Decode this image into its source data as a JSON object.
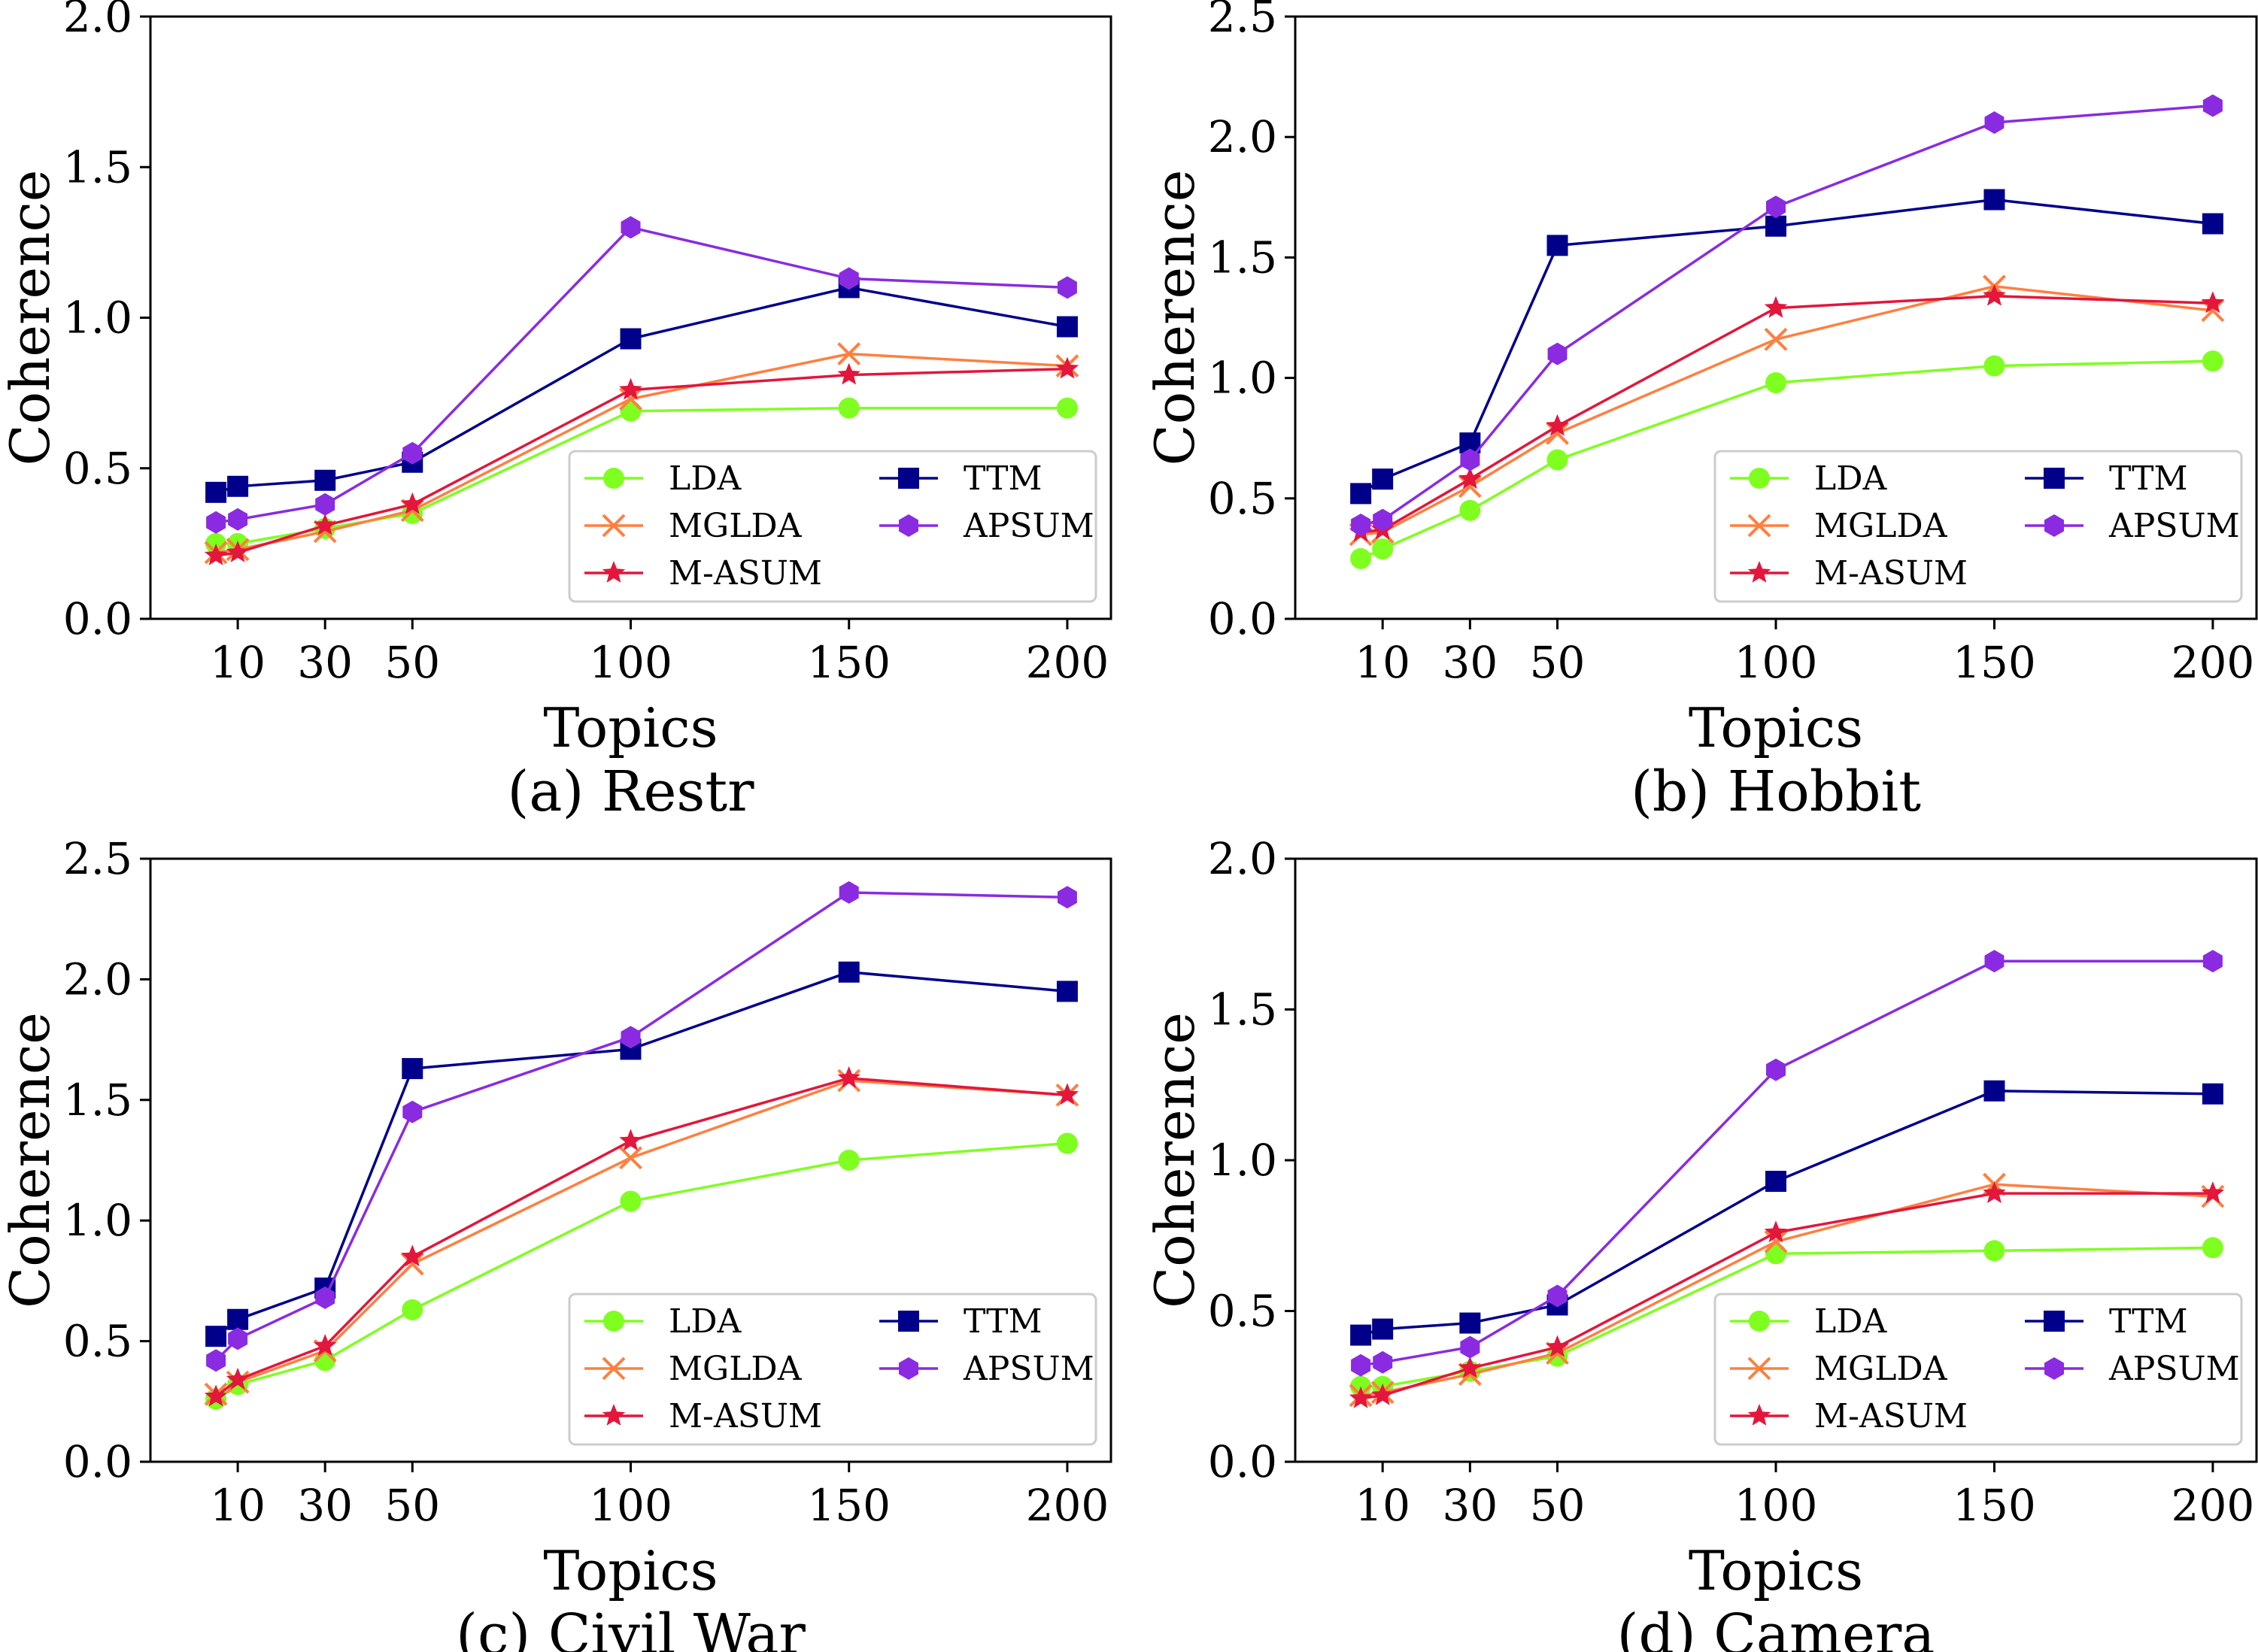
{
  "series_styles": [
    {
      "name": "LDA",
      "color": "#7fff1f",
      "marker": "circle"
    },
    {
      "name": "MGLDA",
      "color": "#ff7f3f",
      "marker": "x"
    },
    {
      "name": "M-ASUM",
      "color": "#e3163b",
      "marker": "star"
    },
    {
      "name": "TTM",
      "color": "#00008b",
      "marker": "square"
    },
    {
      "name": "APSUM",
      "color": "#8a2be2",
      "marker": "hexagon"
    }
  ],
  "chart_data": [
    {
      "type": "line",
      "caption": "(a) Restr",
      "xlabel": "Topics",
      "ylabel": "Coherence",
      "x": [
        5,
        10,
        30,
        50,
        100,
        150,
        200
      ],
      "xticks": [
        10,
        30,
        50,
        100,
        150,
        200
      ],
      "xlim": [
        -10,
        210
      ],
      "ylim": [
        0.0,
        2.0
      ],
      "yticks": [
        "0.0",
        "0.5",
        "1.0",
        "1.5",
        "2.0"
      ],
      "grid": false,
      "legend": "lower-right",
      "series": [
        {
          "name": "LDA",
          "values": [
            0.25,
            0.25,
            0.3,
            0.35,
            0.69,
            0.7,
            0.7
          ]
        },
        {
          "name": "MGLDA",
          "values": [
            0.22,
            0.23,
            0.29,
            0.36,
            0.73,
            0.88,
            0.84
          ]
        },
        {
          "name": "M-ASUM",
          "values": [
            0.21,
            0.22,
            0.31,
            0.38,
            0.76,
            0.81,
            0.83
          ]
        },
        {
          "name": "TTM",
          "values": [
            0.42,
            0.44,
            0.46,
            0.52,
            0.93,
            1.1,
            0.97
          ]
        },
        {
          "name": "APSUM",
          "values": [
            0.32,
            0.33,
            0.38,
            0.55,
            1.3,
            1.13,
            1.1
          ]
        }
      ]
    },
    {
      "type": "line",
      "caption": "(b) Hobbit",
      "xlabel": "Topics",
      "ylabel": "Coherence",
      "x": [
        5,
        10,
        30,
        50,
        100,
        150,
        200
      ],
      "xticks": [
        10,
        30,
        50,
        100,
        150,
        200
      ],
      "xlim": [
        -10,
        210
      ],
      "ylim": [
        0.0,
        2.5
      ],
      "yticks": [
        "0.0",
        "0.5",
        "1.0",
        "1.5",
        "2.0",
        "2.5"
      ],
      "grid": false,
      "legend": "lower-right",
      "series": [
        {
          "name": "LDA",
          "values": [
            0.25,
            0.29,
            0.45,
            0.66,
            0.98,
            1.05,
            1.07
          ]
        },
        {
          "name": "MGLDA",
          "values": [
            0.35,
            0.36,
            0.55,
            0.77,
            1.16,
            1.38,
            1.28
          ]
        },
        {
          "name": "M-ASUM",
          "values": [
            0.36,
            0.37,
            0.58,
            0.8,
            1.29,
            1.34,
            1.31
          ]
        },
        {
          "name": "TTM",
          "values": [
            0.52,
            0.58,
            0.73,
            1.55,
            1.63,
            1.74,
            1.64
          ]
        },
        {
          "name": "APSUM",
          "values": [
            0.39,
            0.41,
            0.66,
            1.1,
            1.71,
            2.06,
            2.13
          ]
        }
      ]
    },
    {
      "type": "line",
      "caption": "(c) Civil War",
      "xlabel": "Topics",
      "ylabel": "Coherence",
      "x": [
        5,
        10,
        30,
        50,
        100,
        150,
        200
      ],
      "xticks": [
        10,
        30,
        50,
        100,
        150,
        200
      ],
      "xlim": [
        -10,
        210
      ],
      "ylim": [
        0.0,
        2.5
      ],
      "yticks": [
        "0.0",
        "0.5",
        "1.0",
        "1.5",
        "2.0",
        "2.5"
      ],
      "grid": false,
      "legend": "lower-right",
      "series": [
        {
          "name": "LDA",
          "values": [
            0.26,
            0.32,
            0.42,
            0.63,
            1.08,
            1.25,
            1.32
          ]
        },
        {
          "name": "MGLDA",
          "values": [
            0.28,
            0.33,
            0.46,
            0.82,
            1.26,
            1.58,
            1.52
          ]
        },
        {
          "name": "M-ASUM",
          "values": [
            0.27,
            0.34,
            0.48,
            0.85,
            1.33,
            1.59,
            1.52
          ]
        },
        {
          "name": "TTM",
          "values": [
            0.52,
            0.59,
            0.72,
            1.63,
            1.71,
            2.03,
            1.95
          ]
        },
        {
          "name": "APSUM",
          "values": [
            0.42,
            0.51,
            0.68,
            1.45,
            1.76,
            2.36,
            2.34
          ]
        }
      ]
    },
    {
      "type": "line",
      "caption": "(d) Camera",
      "xlabel": "Topics",
      "ylabel": "Coherence",
      "x": [
        5,
        10,
        30,
        50,
        100,
        150,
        200
      ],
      "xticks": [
        10,
        30,
        50,
        100,
        150,
        200
      ],
      "xlim": [
        -10,
        210
      ],
      "ylim": [
        0.0,
        2.0
      ],
      "yticks": [
        "0.0",
        "0.5",
        "1.0",
        "1.5",
        "2.0"
      ],
      "grid": false,
      "legend": "lower-right",
      "series": [
        {
          "name": "LDA",
          "values": [
            0.25,
            0.25,
            0.3,
            0.35,
            0.69,
            0.7,
            0.71
          ]
        },
        {
          "name": "MGLDA",
          "values": [
            0.22,
            0.23,
            0.29,
            0.36,
            0.73,
            0.92,
            0.88
          ]
        },
        {
          "name": "M-ASUM",
          "values": [
            0.21,
            0.22,
            0.31,
            0.38,
            0.76,
            0.89,
            0.89
          ]
        },
        {
          "name": "TTM",
          "values": [
            0.42,
            0.44,
            0.46,
            0.52,
            0.93,
            1.23,
            1.22
          ]
        },
        {
          "name": "APSUM",
          "values": [
            0.32,
            0.33,
            0.38,
            0.55,
            1.3,
            1.66,
            1.66
          ]
        }
      ]
    }
  ]
}
